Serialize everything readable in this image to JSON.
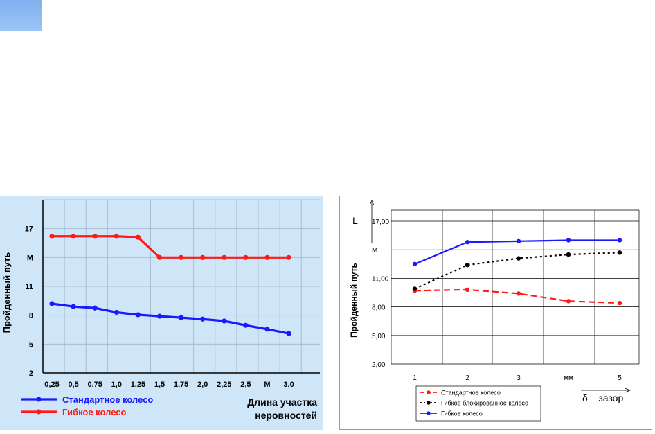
{
  "colors": {
    "corner_box": "#8fbaf3",
    "chart1_bg": "#cfe6f8",
    "red": "#ff1a1a",
    "blue": "#1a1aff",
    "black": "#000000"
  },
  "chart_data": [
    {
      "type": "line",
      "categories": [
        "0,25",
        "0,5",
        "0,75",
        "1,0",
        "1,25",
        "1,5",
        "1,75",
        "2,0",
        "2,25",
        "2,5",
        "М",
        "3,0"
      ],
      "y_ticks": [
        "2",
        "5",
        "8",
        "11",
        "М",
        "17"
      ],
      "y_tick_values": [
        2,
        5,
        8,
        11,
        14,
        17
      ],
      "ylim": [
        2,
        20
      ],
      "ylabel": "Пройденный путь",
      "xlabel_line1": "Длина участка",
      "xlabel_line2": "неровностей",
      "grid": true,
      "legend_position": "bottom-left",
      "series": [
        {
          "name": "Стандартное колесо",
          "color": "#1a1aff",
          "values": [
            9.2,
            8.9,
            8.75,
            8.3,
            8.05,
            7.9,
            7.75,
            7.6,
            7.4,
            6.95,
            6.55,
            6.1
          ]
        },
        {
          "name": "Гибкое колесо",
          "color": "#ff1a1a",
          "values": [
            16.2,
            16.2,
            16.2,
            16.2,
            16.1,
            14.0,
            14.0,
            14.0,
            14.0,
            14.0,
            14.0,
            14.0
          ]
        }
      ]
    },
    {
      "type": "line",
      "categories": [
        "1",
        "2",
        "3",
        "мм",
        "5"
      ],
      "y_ticks": [
        "2,00",
        "5,00",
        "8,00",
        "11,00",
        "М",
        "17,00"
      ],
      "y_tick_values": [
        2,
        5,
        8,
        11,
        14,
        17
      ],
      "ylim": [
        2,
        17
      ],
      "ylabel": "Пройденный путь",
      "y_axis_letter": "L",
      "x_axis_label": "δ – зазор",
      "grid": true,
      "legend_position": "bottom-center",
      "series": [
        {
          "name": "Стандартное колесо",
          "color": "#ff1a1a",
          "dash": "dashed",
          "values": [
            9.7,
            9.8,
            9.4,
            8.6,
            8.4
          ]
        },
        {
          "name": "Гибкое блокированное колесо",
          "color": "#000000",
          "dash": "dotted",
          "values": [
            9.9,
            12.4,
            13.1,
            13.5,
            13.7
          ]
        },
        {
          "name": "Гибкое колесо",
          "color": "#1a1aff",
          "dash": "solid",
          "values": [
            12.5,
            14.8,
            14.9,
            15.0,
            15.0
          ]
        }
      ]
    }
  ]
}
